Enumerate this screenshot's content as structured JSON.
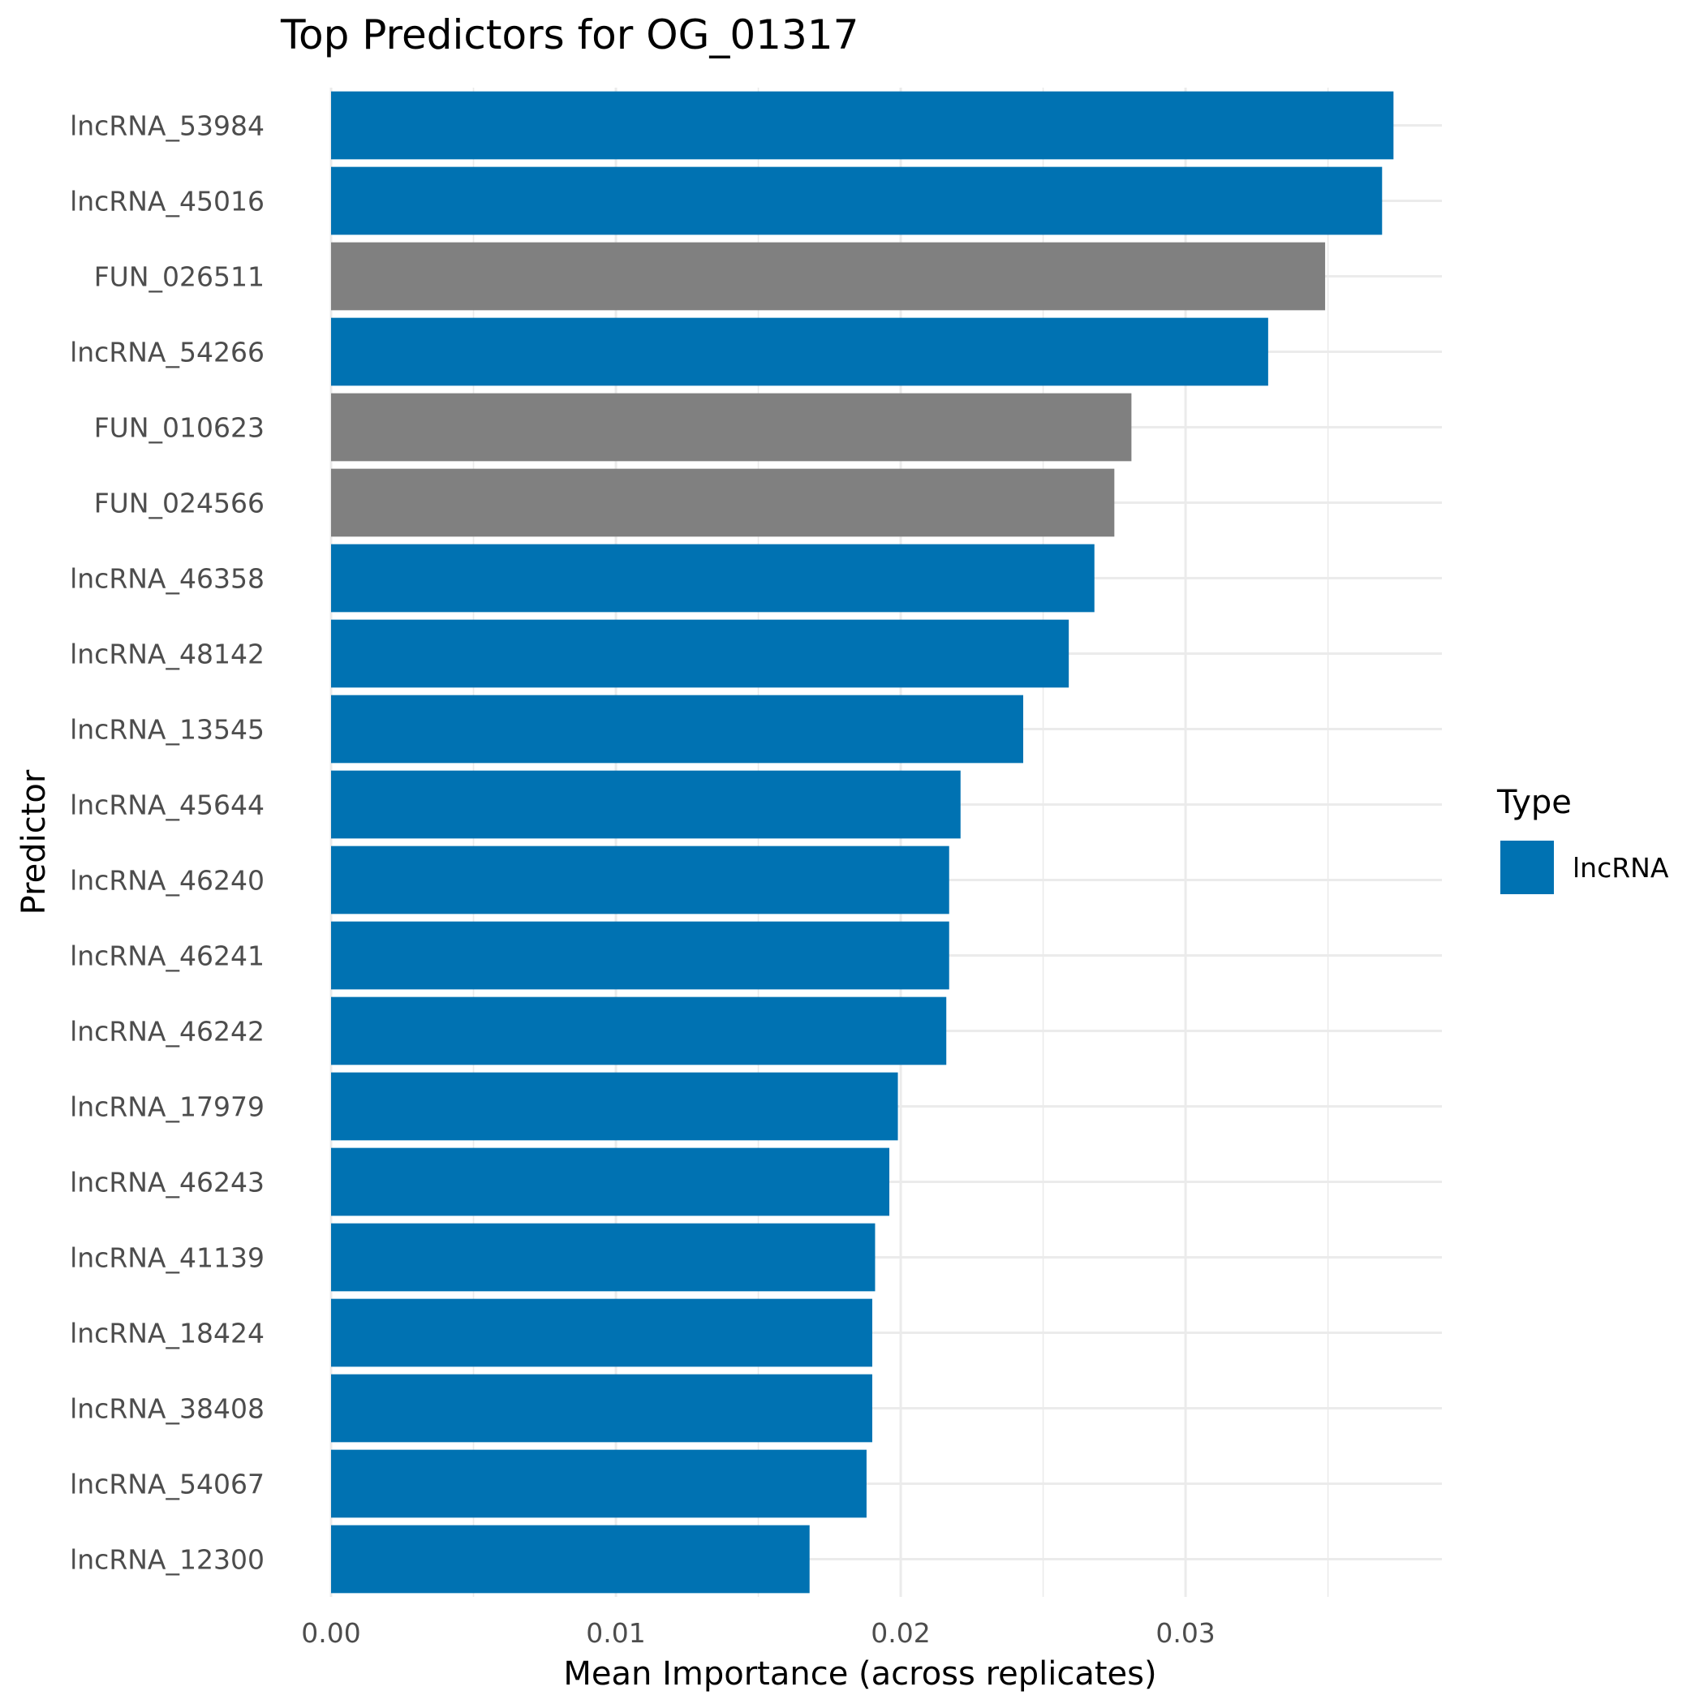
{
  "chart_data": {
    "type": "bar",
    "orientation": "horizontal",
    "title": "Top Predictors for OG_01317",
    "xlabel": "Mean Importance (across replicates)",
    "ylabel": "Predictor",
    "xlim": [
      0,
      0.039
    ],
    "x_ticks": [
      "0.00",
      "0.01",
      "0.02",
      "0.03"
    ],
    "x_tick_values": [
      0,
      0.01,
      0.02,
      0.03
    ],
    "grid": true,
    "legend": {
      "title": "Type",
      "placement": "right",
      "entries": [
        {
          "label": "lncRNA",
          "color": "#0072b2"
        }
      ]
    },
    "colors": {
      "lncRNA": "#0072b2",
      "other": "#808080"
    },
    "categories": [
      "lncRNA_53984",
      "lncRNA_45016",
      "FUN_026511",
      "lncRNA_54266",
      "FUN_010623",
      "FUN_024566",
      "lncRNA_46358",
      "lncRNA_48142",
      "lncRNA_13545",
      "lncRNA_45644",
      "lncRNA_46240",
      "lncRNA_46241",
      "lncRNA_46242",
      "lncRNA_17979",
      "lncRNA_46243",
      "lncRNA_41139",
      "lncRNA_18424",
      "lncRNA_38408",
      "lncRNA_54067",
      "lncRNA_12300"
    ],
    "values": [
      0.0373,
      0.0369,
      0.0349,
      0.0329,
      0.0281,
      0.0275,
      0.0268,
      0.0259,
      0.0243,
      0.0221,
      0.0217,
      0.0217,
      0.0216,
      0.0199,
      0.0196,
      0.0191,
      0.019,
      0.019,
      0.0188,
      0.0168
    ],
    "types": [
      "lncRNA",
      "lncRNA",
      "other",
      "lncRNA",
      "other",
      "other",
      "lncRNA",
      "lncRNA",
      "lncRNA",
      "lncRNA",
      "lncRNA",
      "lncRNA",
      "lncRNA",
      "lncRNA",
      "lncRNA",
      "lncRNA",
      "lncRNA",
      "lncRNA",
      "lncRNA",
      "lncRNA"
    ]
  }
}
